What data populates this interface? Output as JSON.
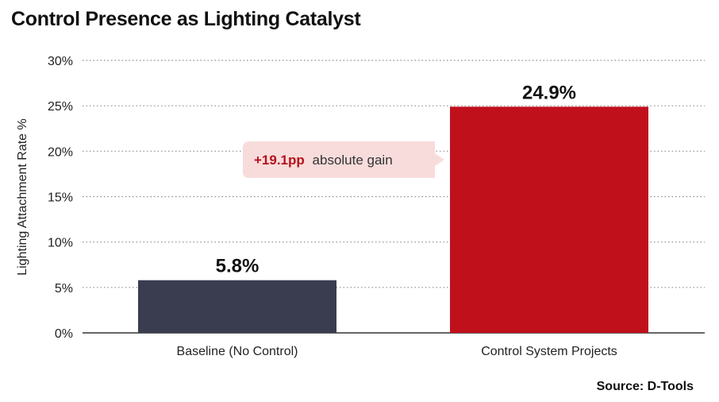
{
  "chart_data": {
    "type": "bar",
    "title": "Control Presence as Lighting Catalyst",
    "ylabel": "Lighting Attachment Rate %",
    "xlabel": "",
    "ylim": [
      0,
      30
    ],
    "yticks": [
      0,
      5,
      10,
      15,
      20,
      25,
      30
    ],
    "ytick_labels": [
      "0%",
      "5%",
      "10%",
      "15%",
      "20%",
      "25%",
      "30%"
    ],
    "categories": [
      "Baseline (No Control)",
      "Control System Projects"
    ],
    "values": [
      5.8,
      24.9
    ],
    "value_labels": [
      "5.8%",
      "24.9%"
    ],
    "colors": [
      "#3a3d50",
      "#c0101c"
    ],
    "grid": true,
    "annotation": {
      "strong": "+19.1pp",
      "rest": "absolute gain"
    }
  },
  "source": "Source: D-Tools"
}
